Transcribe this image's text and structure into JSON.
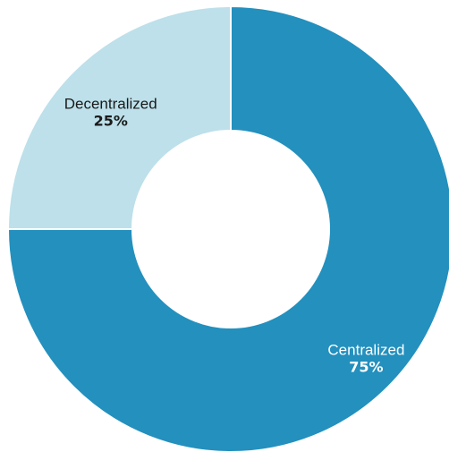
{
  "chart_data": {
    "type": "pie",
    "variant": "donut",
    "title": "",
    "slices": [
      {
        "label": "Centralized",
        "value": 75,
        "value_label": "75%",
        "color": "#2390be",
        "text_color": "#ffffff"
      },
      {
        "label": "Decentralized",
        "value": 25,
        "value_label": "25%",
        "color": "#bde0ea",
        "text_color": "#1a1a1a"
      }
    ],
    "start_angle": "12 o'clock",
    "direction": "clockwise",
    "legend": "none",
    "separator_color": "#ffffff"
  }
}
